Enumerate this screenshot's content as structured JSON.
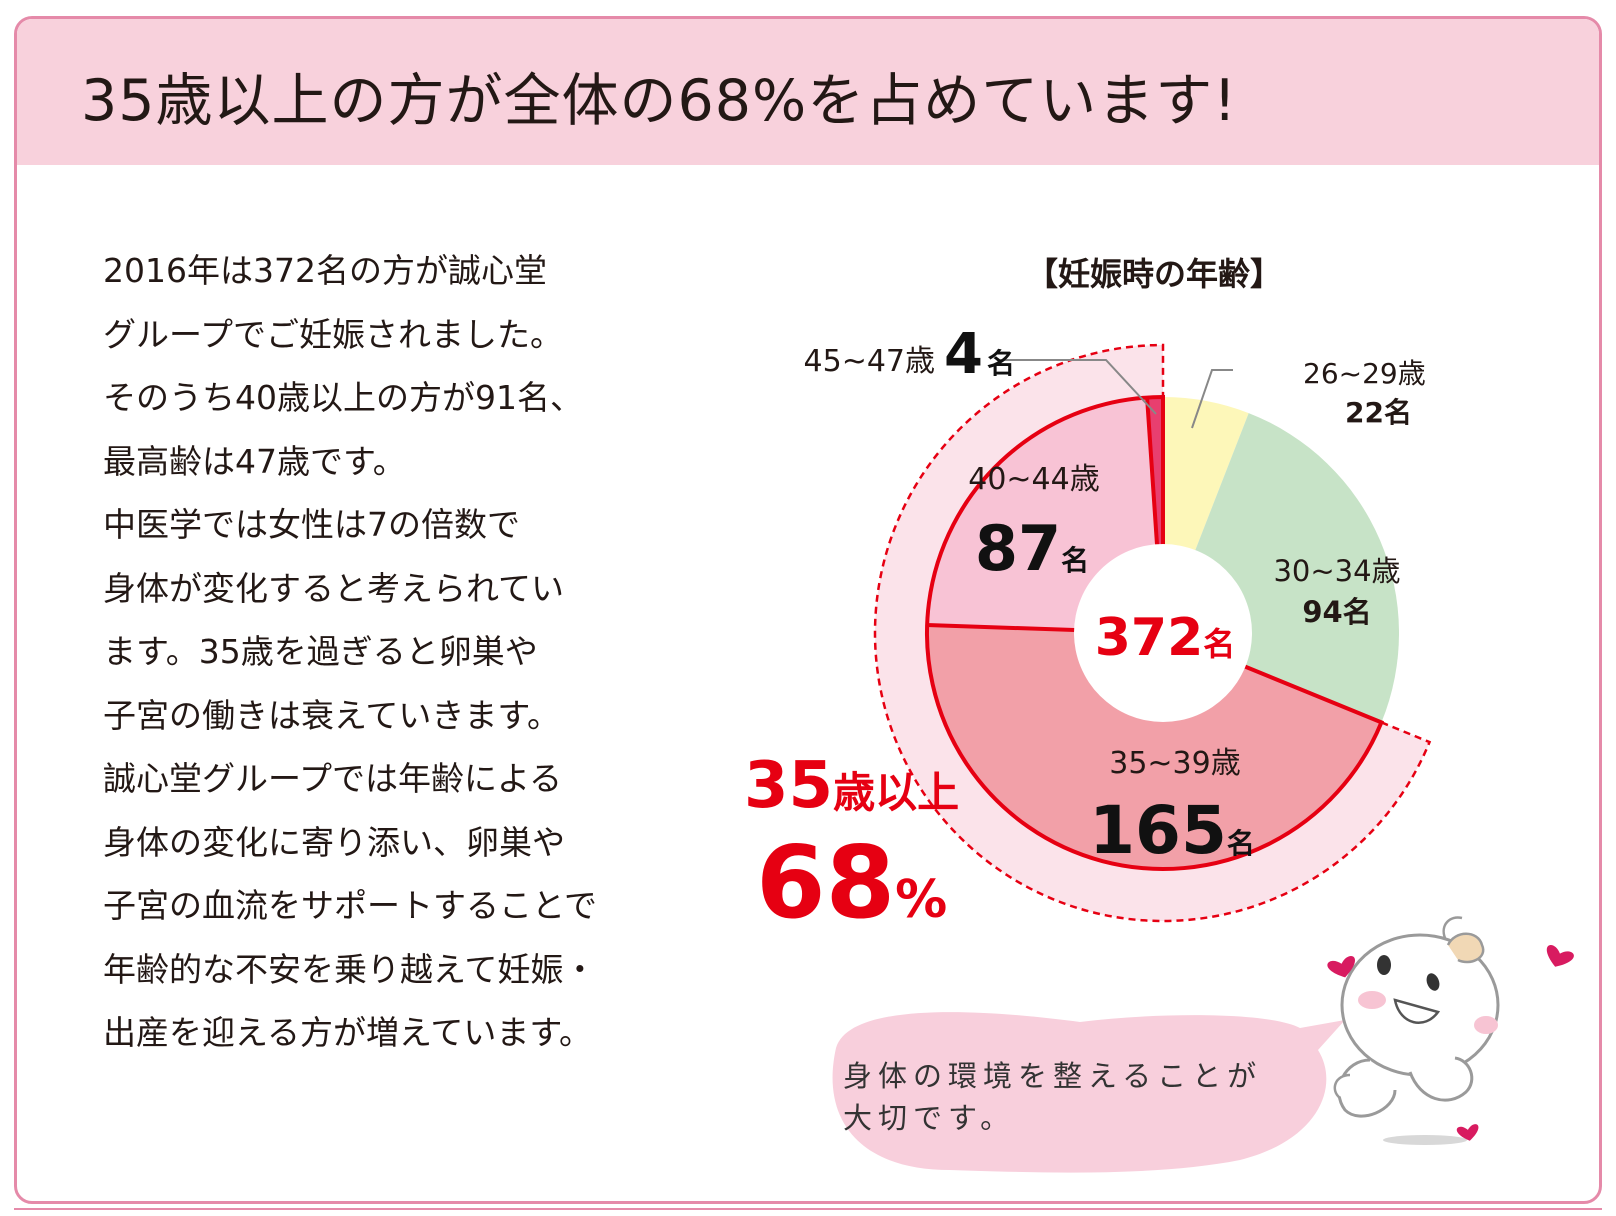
{
  "header": {
    "title": "35歳以上の方が全体の68%を占めています!"
  },
  "body_lines": [
    "2016年は372名の方が誠心堂",
    "グループでご妊娠されました。",
    "そのうち40歳以上の方が91名、",
    "最高齢は47歳です。",
    "中医学では女性は7の倍数で",
    "身体が変化すると考えられてい",
    "ます。35歳を過ぎると卵巣や",
    "子宮の働きは衰えていきます。",
    "誠心堂グループでは年齢による",
    "身体の変化に寄り添い、卵巣や",
    "子宮の血流をサポートすることで",
    "年齢的な不安を乗り越えて妊娠・",
    "出産を迎える方が増えています。"
  ],
  "chart_data": {
    "type": "pie",
    "title": "【妊娠時の年齢】",
    "total": {
      "value": "372",
      "unit": "名"
    },
    "slices": [
      {
        "label": "26~29歳",
        "count": 22,
        "count_text": "22",
        "unit": "名",
        "color": "#fdf7b9"
      },
      {
        "label": "30~34歳",
        "count": 94,
        "count_text": "94",
        "unit": "名",
        "color": "#c7e3c7"
      },
      {
        "label": "35~39歳",
        "count": 165,
        "count_text": "165",
        "unit": "名",
        "color": "#f2a0a8"
      },
      {
        "label": "40~44歳",
        "count": 87,
        "count_text": "87",
        "unit": "名",
        "color": "#f8c3d5"
      },
      {
        "label": "45~47歳",
        "count": 4,
        "count_text": "4",
        "unit": "名",
        "color": "#e83f6f"
      }
    ],
    "highlight": {
      "label_num": "35",
      "label_text": "歳以上",
      "percent": "68",
      "percent_sign": "%",
      "color": "#e60012"
    }
  },
  "bubble": {
    "lines": [
      "身体の環境を整えることが",
      "大切です。"
    ]
  },
  "colors": {
    "frame": "#e58aa9",
    "header_bg": "#f8d1dc",
    "accent_red": "#e60012",
    "bubble_bg": "#f8cfdc"
  }
}
